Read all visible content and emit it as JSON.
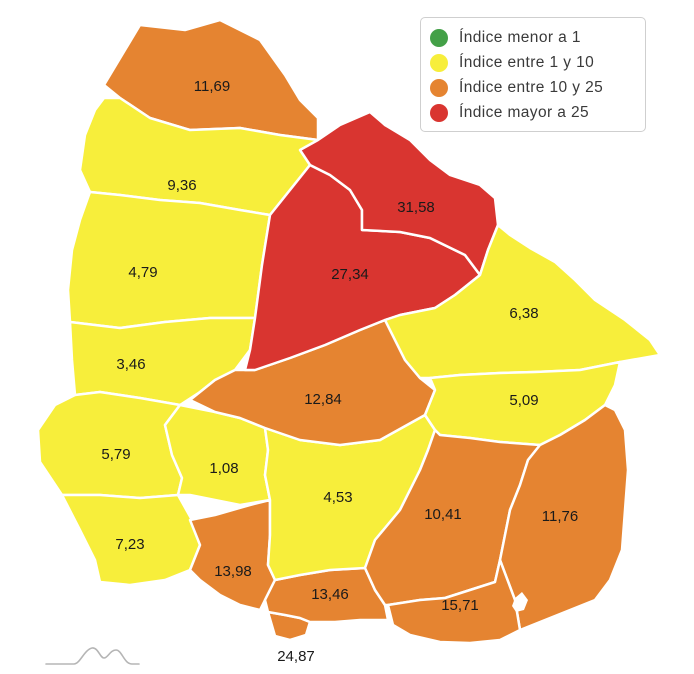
{
  "legend": {
    "items": [
      {
        "label": "Índice menor a 1",
        "color": "#43a047"
      },
      {
        "label": "Índice entre 1 y 10",
        "color": "#f7ee3b"
      },
      {
        "label": "Índice entre 10 y 25",
        "color": "#e58431"
      },
      {
        "label": "Índice mayor a 25",
        "color": "#d93530"
      }
    ]
  },
  "regions": [
    {
      "id": "artigas",
      "value": "11,69",
      "category": 2
    },
    {
      "id": "salto",
      "value": "9,36",
      "category": 1
    },
    {
      "id": "paysandu",
      "value": "4,79",
      "category": 1
    },
    {
      "id": "rio-negro",
      "value": "3,46",
      "category": 1
    },
    {
      "id": "soriano",
      "value": "5,79",
      "category": 1
    },
    {
      "id": "colonia",
      "value": "7,23",
      "category": 1
    },
    {
      "id": "flores",
      "value": "1,08",
      "category": 1
    },
    {
      "id": "san-jose",
      "value": "13,98",
      "category": 2
    },
    {
      "id": "montevideo",
      "value": "24,87",
      "category": 2
    },
    {
      "id": "canelones",
      "value": "13,46",
      "category": 2
    },
    {
      "id": "florida",
      "value": "4,53",
      "category": 1
    },
    {
      "id": "durazno",
      "value": "12,84",
      "category": 2
    },
    {
      "id": "tacuarembo",
      "value": "27,34",
      "category": 3
    },
    {
      "id": "rivera",
      "value": "31,58",
      "category": 3
    },
    {
      "id": "cerro-largo",
      "value": "6,38",
      "category": 1
    },
    {
      "id": "treinta-y-tres",
      "value": "5,09",
      "category": 1
    },
    {
      "id": "lavalleja",
      "value": "10,41",
      "category": 2
    },
    {
      "id": "rocha",
      "value": "11,76",
      "category": 2
    },
    {
      "id": "maldonado",
      "value": "15,71",
      "category": 2
    }
  ]
}
